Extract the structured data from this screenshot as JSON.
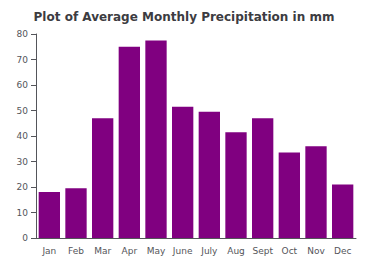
{
  "chart_data": {
    "type": "bar",
    "title": "Plot of Average Monthly Precipitation in mm",
    "categories": [
      "Jan",
      "Feb",
      "Mar",
      "Apr",
      "May",
      "June",
      "July",
      "Aug",
      "Sept",
      "Oct",
      "Nov",
      "Dec"
    ],
    "values": [
      18,
      19.5,
      47,
      75,
      77.5,
      51.5,
      49.5,
      41.5,
      47,
      33.5,
      36,
      21
    ],
    "color": "#800080",
    "ylim": [
      0,
      80
    ],
    "yticks": [
      0,
      10,
      20,
      30,
      40,
      50,
      60,
      70,
      80
    ],
    "grid": false
  }
}
